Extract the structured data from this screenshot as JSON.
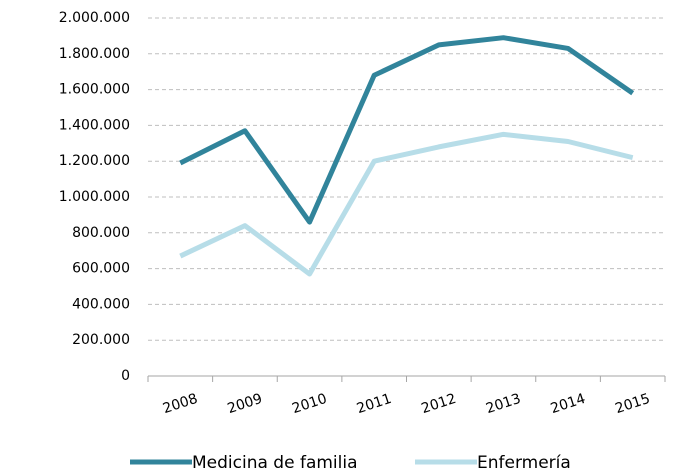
{
  "chart_data": {
    "type": "line",
    "categories": [
      "2008",
      "2009",
      "2010",
      "2011",
      "2012",
      "2013",
      "2014",
      "2015"
    ],
    "series": [
      {
        "name": "Medicina de familia",
        "color": "#31849b",
        "values": [
          1190000,
          1370000,
          860000,
          1680000,
          1850000,
          1890000,
          1830000,
          1580000
        ]
      },
      {
        "name": "Enfermería",
        "color": "#b7dde8",
        "values": [
          670000,
          840000,
          570000,
          1200000,
          1280000,
          1350000,
          1310000,
          1220000
        ]
      }
    ],
    "ylim": [
      0,
      2000000
    ],
    "yticks": [
      0,
      {
        "value": 200000,
        "label": "200.000"
      },
      {
        "value": 400000,
        "label": "400.000"
      },
      {
        "value": 600000,
        "label": "600.000"
      },
      {
        "value": 800000,
        "label": "800.000"
      },
      {
        "value": 1000000,
        "label": "1.000.000"
      },
      {
        "value": 1200000,
        "label": "1.200.000"
      },
      {
        "value": 1400000,
        "label": "1.400.000"
      },
      {
        "value": 1600000,
        "label": "1.600.000"
      },
      {
        "value": 1800000,
        "label": "1.800.000"
      },
      {
        "value": 2000000,
        "label": "2.000.000"
      }
    ],
    "grid": true,
    "legend": "bottom"
  }
}
